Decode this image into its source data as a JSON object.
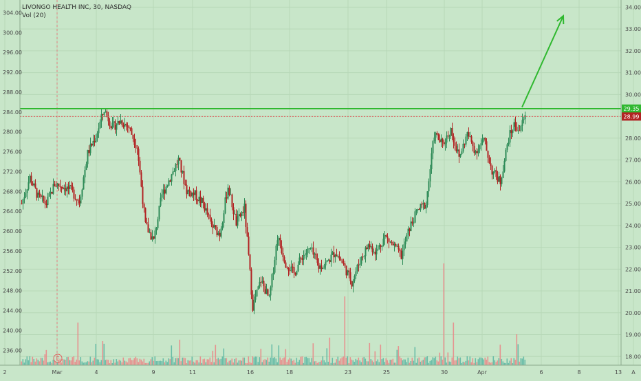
{
  "header": {
    "title": "LIVONGO HEALTH INC, 30, NASDAQ",
    "volume_indicator": "Vol (20)"
  },
  "colors": {
    "background": "#c8e6c9",
    "up_candle": "#2e8b57",
    "down_candle": "#b22222",
    "up_volume": "#5fb8a4",
    "down_volume": "#e98888",
    "resistance_line": "#2fb82f",
    "last_price_line": "#e06060",
    "arrow": "#2fb82f",
    "axis_text": "#4a4a4a"
  },
  "axes": {
    "left_ticks": [
      "304.00",
      "300.00",
      "296.00",
      "292.00",
      "288.00",
      "284.00",
      "280.00",
      "276.00",
      "272.00",
      "268.00",
      "264.00",
      "260.00",
      "256.00",
      "252.00",
      "248.00",
      "244.00",
      "240.00",
      "236.00"
    ],
    "right_ticks": [
      "34.00",
      "33.00",
      "32.00",
      "31.00",
      "30.00",
      "29.00",
      "28.00",
      "27.00",
      "26.00",
      "25.00",
      "24.00",
      "23.00",
      "22.00",
      "21.00",
      "20.00",
      "19.00",
      "18.00"
    ],
    "x_ticks": [
      "2",
      "Mar",
      "4",
      "9",
      "11",
      "16",
      "18",
      "23",
      "25",
      "30",
      "Apr",
      "6",
      "8",
      "13",
      "A"
    ]
  },
  "badges": {
    "resistance_price": "29.35",
    "last_price": "28.99"
  },
  "event_marker": "E",
  "chart_data": {
    "type": "candlestick",
    "title": "LIVONGO HEALTH INC, 30, NASDAQ",
    "y_right_range": [
      17.6,
      34.2
    ],
    "y_left_range": [
      233.0,
      306.0
    ],
    "resistance_level": 29.35,
    "last_price": 28.99,
    "x_labels": [
      "2",
      "Mar",
      "4",
      "9",
      "11",
      "16",
      "18",
      "23",
      "25",
      "30",
      "Apr",
      "6",
      "8",
      "13",
      "A"
    ],
    "close_path_right_axis": [
      [
        0,
        25.0
      ],
      [
        6,
        26.2
      ],
      [
        12,
        25.3
      ],
      [
        18,
        25.0
      ],
      [
        24,
        25.9
      ],
      [
        30,
        25.8
      ],
      [
        36,
        25.6
      ],
      [
        42,
        25.1
      ],
      [
        48,
        27.3
      ],
      [
        54,
        28.1
      ],
      [
        60,
        29.3
      ],
      [
        66,
        28.5
      ],
      [
        72,
        28.8
      ],
      [
        78,
        28.5
      ],
      [
        84,
        27.6
      ],
      [
        90,
        24.0
      ],
      [
        96,
        23.3
      ],
      [
        102,
        25.4
      ],
      [
        108,
        26.2
      ],
      [
        114,
        27.0
      ],
      [
        120,
        25.6
      ],
      [
        126,
        25.4
      ],
      [
        132,
        25.0
      ],
      [
        138,
        24.0
      ],
      [
        144,
        23.6
      ],
      [
        150,
        25.8
      ],
      [
        156,
        24.1
      ],
      [
        162,
        24.8
      ],
      [
        168,
        20.3
      ],
      [
        174,
        21.5
      ],
      [
        180,
        20.6
      ],
      [
        186,
        23.5
      ],
      [
        192,
        22.3
      ],
      [
        198,
        21.8
      ],
      [
        204,
        22.6
      ],
      [
        210,
        22.9
      ],
      [
        216,
        22.1
      ],
      [
        222,
        22.3
      ],
      [
        228,
        22.8
      ],
      [
        234,
        22.2
      ],
      [
        240,
        21.4
      ],
      [
        246,
        22.4
      ],
      [
        252,
        23.1
      ],
      [
        258,
        22.8
      ],
      [
        264,
        23.5
      ],
      [
        270,
        23.1
      ],
      [
        276,
        22.6
      ],
      [
        282,
        23.9
      ],
      [
        288,
        24.7
      ],
      [
        294,
        25.0
      ],
      [
        300,
        28.2
      ],
      [
        306,
        27.7
      ],
      [
        312,
        28.4
      ],
      [
        318,
        27.1
      ],
      [
        324,
        28.2
      ],
      [
        330,
        27.4
      ],
      [
        336,
        27.9
      ],
      [
        342,
        26.5
      ],
      [
        348,
        26.0
      ],
      [
        354,
        28.0
      ],
      [
        358,
        28.6
      ],
      [
        362,
        28.4
      ],
      [
        366,
        29.0
      ]
    ],
    "arrow_target": {
      "bar": 394,
      "price": 33.6
    },
    "volume_note": "Vol (20) histogram; largest spikes near Mar 5 and Mar 30"
  }
}
